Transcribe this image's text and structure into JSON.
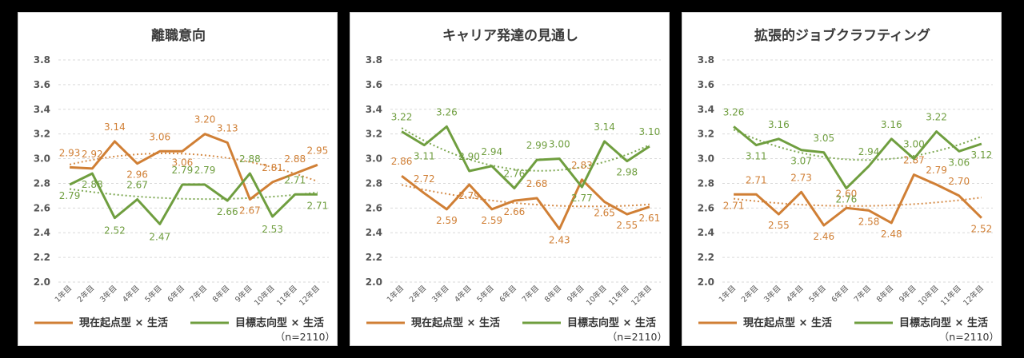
{
  "colors": {
    "orange": "#D07F35",
    "green": "#6F9E3F"
  },
  "legend": {
    "series1": "現在起点型 × 生活",
    "series2": "目標志向型 × 生活"
  },
  "note": "（n=2110）",
  "chart_data": [
    {
      "type": "line",
      "title": "離職意向",
      "categories": [
        "1年目",
        "2年目",
        "3年目",
        "4年目",
        "5年目",
        "6年目",
        "7年目",
        "8年目",
        "9年目",
        "10年目",
        "11年目",
        "12年目"
      ],
      "ylim": [
        2.0,
        3.8
      ],
      "yticks": [
        "3.8",
        "3.6",
        "3.4",
        "3.2",
        "3.0",
        "2.8",
        "2.6",
        "2.4",
        "2.2",
        "2.0"
      ],
      "series": [
        {
          "name": "現在起点型 × 生活",
          "values": [
            2.93,
            2.92,
            3.14,
            2.96,
            3.06,
            3.06,
            3.2,
            3.13,
            2.67,
            2.81,
            2.88,
            2.95
          ],
          "labels": [
            "2.93",
            "2.92",
            "3.14",
            "2.96",
            "3.06",
            "3.06",
            "3.20",
            "3.13",
            "2.67",
            "2.81",
            "2.88",
            "2.95"
          ]
        },
        {
          "name": "目標志向型 × 生活",
          "values": [
            2.79,
            2.88,
            2.52,
            2.67,
            2.47,
            2.79,
            2.79,
            2.66,
            2.88,
            2.53,
            2.71,
            2.71
          ],
          "labels": [
            "2.79",
            "2.88",
            "2.52",
            "2.67",
            "2.47",
            "2.79",
            "2.79",
            "2.66",
            "2.88",
            "2.53",
            "2.71",
            "2.71"
          ]
        }
      ]
    },
    {
      "type": "line",
      "title": "キャリア発達の見通し",
      "categories": [
        "1年目",
        "2年目",
        "3年目",
        "4年目",
        "5年目",
        "6年目",
        "7年目",
        "8年目",
        "9年目",
        "10年目",
        "11年目",
        "12年目"
      ],
      "ylim": [
        2.0,
        3.8
      ],
      "yticks": [
        "3.8",
        "3.6",
        "3.4",
        "3.2",
        "3.0",
        "2.8",
        "2.6",
        "2.4",
        "2.2",
        "2.0"
      ],
      "series": [
        {
          "name": "現在起点型 × 生活",
          "values": [
            2.86,
            2.72,
            2.59,
            2.79,
            2.59,
            2.66,
            2.68,
            2.43,
            2.83,
            2.65,
            2.55,
            2.61
          ],
          "labels": [
            "2.86",
            "2.72",
            "2.59",
            "2.79",
            "2.59",
            "2.66",
            "2.68",
            "2.43",
            "2.83",
            "2.65",
            "2.55",
            "2.61"
          ]
        },
        {
          "name": "目標志向型 × 生活",
          "values": [
            3.22,
            3.11,
            3.26,
            2.9,
            2.94,
            2.76,
            2.99,
            3.0,
            2.77,
            3.14,
            2.98,
            3.1
          ],
          "labels": [
            "3.22",
            "3.11",
            "3.26",
            "2.90",
            "2.94",
            "2.76",
            "2.99",
            "3.00",
            "2.77",
            "3.14",
            "2.98",
            "3.10"
          ]
        }
      ]
    },
    {
      "type": "line",
      "title": "拡張的ジョブクラフティング",
      "categories": [
        "1年目",
        "2年目",
        "3年目",
        "4年目",
        "5年目",
        "6年目",
        "7年目",
        "8年目",
        "9年目",
        "10年目",
        "11年目",
        "12年目"
      ],
      "ylim": [
        2.0,
        3.8
      ],
      "yticks": [
        "3.8",
        "3.6",
        "3.4",
        "3.2",
        "3.0",
        "2.8",
        "2.6",
        "2.4",
        "2.2",
        "2.0"
      ],
      "series": [
        {
          "name": "現在起点型 × 生活",
          "values": [
            2.71,
            2.71,
            2.55,
            2.73,
            2.46,
            2.6,
            2.58,
            2.48,
            2.87,
            2.79,
            2.7,
            2.52
          ],
          "labels": [
            "2.71",
            "2.71",
            "2.55",
            "2.73",
            "2.46",
            "2.60",
            "2.58",
            "2.48",
            "2.87",
            "2.79",
            "2.70",
            "2.52"
          ]
        },
        {
          "name": "目標志向型 × 生活",
          "values": [
            3.26,
            3.11,
            3.16,
            3.07,
            3.05,
            2.76,
            2.94,
            3.16,
            3.0,
            3.22,
            3.06,
            3.12
          ],
          "labels": [
            "3.26",
            "3.11",
            "3.16",
            "3.07",
            "3.05",
            "2.76",
            "2.94",
            "3.16",
            "3.00",
            "3.22",
            "3.06",
            "3.12"
          ]
        }
      ]
    }
  ]
}
